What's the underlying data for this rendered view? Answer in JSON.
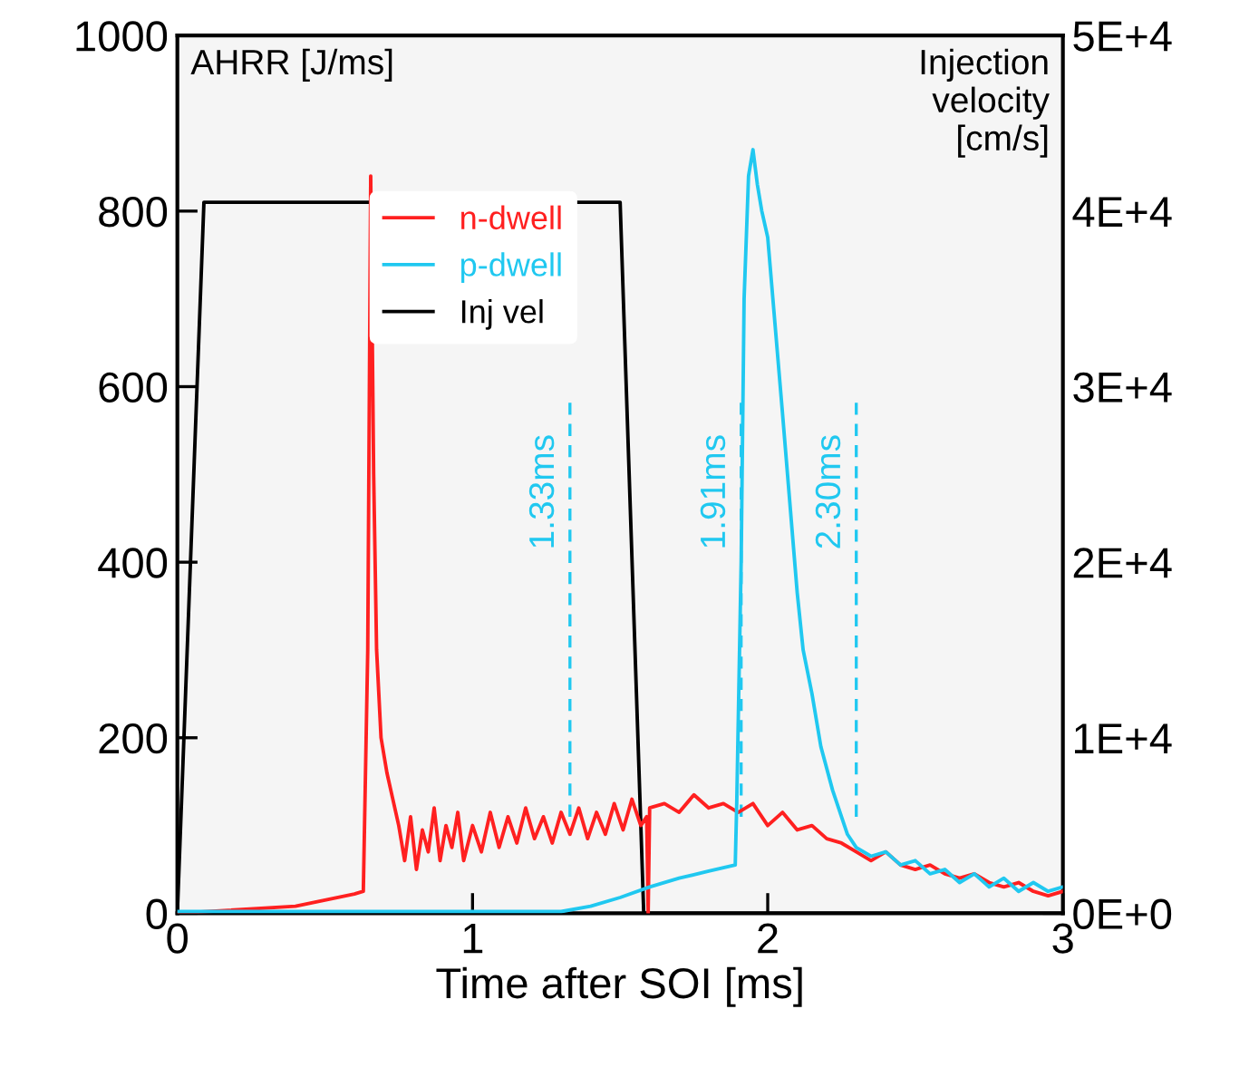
{
  "chart_data": {
    "type": "line",
    "xlabel": "Time after SOI [ms]",
    "ylabel": "AHRR [J/ms]",
    "y2label": "Injection velocity [cm/s]",
    "xlim": [
      0,
      3
    ],
    "xticks": [
      0,
      1,
      2,
      3
    ],
    "ylim": [
      0,
      1000
    ],
    "yticks": [
      0,
      200,
      400,
      600,
      800,
      1000
    ],
    "y2lim": [
      0,
      50000
    ],
    "y2ticks": [
      {
        "value": 0,
        "label": "0E+0"
      },
      {
        "value": 10000,
        "label": "1E+4"
      },
      {
        "value": 20000,
        "label": "2E+4"
      },
      {
        "value": 30000,
        "label": "3E+4"
      },
      {
        "value": 40000,
        "label": "4E+4"
      },
      {
        "value": 50000,
        "label": "5E+4"
      }
    ],
    "legend": "top left",
    "grid": false,
    "series": [
      {
        "name": "n-dwell",
        "color": "#ff2020",
        "x": [
          0,
          0.4,
          0.5,
          0.6,
          0.63,
          0.645,
          0.655,
          0.665,
          0.675,
          0.69,
          0.71,
          0.73,
          0.75,
          0.77,
          0.79,
          0.81,
          0.83,
          0.85,
          0.87,
          0.89,
          0.91,
          0.93,
          0.95,
          0.97,
          1.0,
          1.03,
          1.06,
          1.09,
          1.12,
          1.15,
          1.18,
          1.21,
          1.24,
          1.27,
          1.3,
          1.33,
          1.36,
          1.39,
          1.42,
          1.45,
          1.48,
          1.51,
          1.54,
          1.57,
          1.59,
          1.595,
          1.6,
          1.65,
          1.7,
          1.75,
          1.8,
          1.85,
          1.9,
          1.95,
          2.0,
          2.05,
          2.1,
          2.15,
          2.2,
          2.25,
          2.3,
          2.35,
          2.4,
          2.45,
          2.5,
          2.55,
          2.6,
          2.65,
          2.7,
          2.75,
          2.8,
          2.85,
          2.9,
          2.95,
          3.0
        ],
        "values": [
          0,
          8,
          15,
          22,
          25,
          300,
          840,
          500,
          300,
          200,
          160,
          130,
          100,
          60,
          110,
          50,
          95,
          70,
          120,
          60,
          100,
          75,
          115,
          60,
          100,
          70,
          115,
          75,
          110,
          80,
          120,
          85,
          110,
          80,
          115,
          90,
          120,
          85,
          115,
          90,
          125,
          95,
          130,
          100,
          110,
          0,
          120,
          125,
          115,
          135,
          120,
          125,
          115,
          125,
          100,
          115,
          95,
          100,
          85,
          80,
          70,
          60,
          70,
          55,
          50,
          55,
          45,
          40,
          45,
          35,
          30,
          35,
          25,
          20,
          25
        ]
      },
      {
        "name": "p-dwell",
        "color": "#20c8f0",
        "x": [
          0,
          1.3,
          1.4,
          1.5,
          1.6,
          1.7,
          1.8,
          1.89,
          1.895,
          1.91,
          1.92,
          1.935,
          1.95,
          1.965,
          1.98,
          2.0,
          2.05,
          2.1,
          2.12,
          2.15,
          2.18,
          2.22,
          2.27,
          2.3,
          2.35,
          2.4,
          2.45,
          2.5,
          2.55,
          2.6,
          2.65,
          2.7,
          2.75,
          2.8,
          2.85,
          2.9,
          2.95,
          3.0
        ],
        "values": [
          2,
          2,
          8,
          18,
          30,
          40,
          48,
          55,
          125,
          400,
          700,
          840,
          870,
          830,
          800,
          770,
          570,
          365,
          300,
          250,
          190,
          140,
          90,
          75,
          65,
          70,
          55,
          60,
          45,
          50,
          35,
          45,
          30,
          40,
          25,
          35,
          25,
          30
        ]
      },
      {
        "name": "Inj vel",
        "color": "#000000",
        "axis": "y2",
        "x": [
          0,
          0.09,
          1.5,
          1.58,
          3
        ],
        "values": [
          0,
          40500,
          40500,
          0,
          0
        ]
      }
    ],
    "ref_lines": [
      {
        "axis": "x",
        "value": 1.33,
        "label": "1.33ms",
        "color": "#20c8f0",
        "line_style": "dashed"
      },
      {
        "axis": "x",
        "value": 1.91,
        "label": "1.91ms",
        "color": "#20c8f0",
        "line_style": "dashed"
      },
      {
        "axis": "x",
        "value": 2.3,
        "label": "2.30ms",
        "color": "#20c8f0",
        "line_style": "dashed"
      }
    ]
  }
}
